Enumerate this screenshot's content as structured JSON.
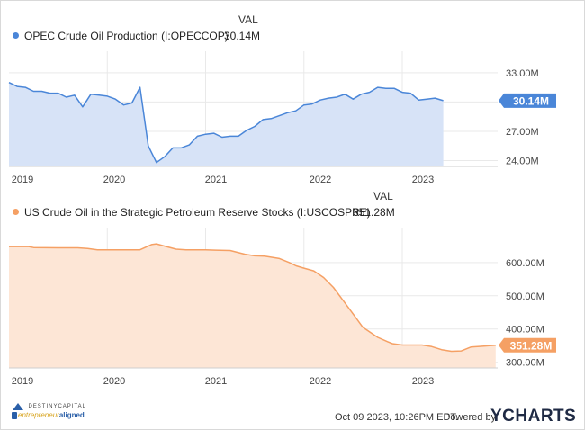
{
  "column_header": "VAL",
  "colors": {
    "opec": "#4a86d8",
    "opec_fill": "#d7e3f7",
    "spr": "#f5a064",
    "spr_fill": "#fde6d6",
    "grid": "#e9e9e9"
  },
  "chart_data": [
    {
      "type": "area",
      "legend": "OPEC Crude Oil Production (I:OPECCOP)",
      "last_value_label": "30.14M",
      "x_tick_labels": [
        "2019",
        "2020",
        "2021",
        "2022",
        "2023"
      ],
      "y_tick_labels": [
        "33.00M",
        "30.00M",
        "27.00M",
        "24.00M"
      ],
      "y_ticks": [
        33,
        30,
        27,
        24
      ],
      "ylim": [
        23.4,
        35.2
      ],
      "xlim": [
        2019.0,
        2023.97
      ],
      "series": [
        {
          "x": [
            2019.0,
            2019.083,
            2019.167,
            2019.25,
            2019.333,
            2019.417,
            2019.5,
            2019.583,
            2019.667,
            2019.75,
            2019.833,
            2019.917,
            2020.0,
            2020.083,
            2020.167,
            2020.25,
            2020.333,
            2020.417,
            2020.5,
            2020.583,
            2020.667,
            2020.75,
            2020.833,
            2020.917,
            2021.0,
            2021.083,
            2021.167,
            2021.25,
            2021.333,
            2021.417,
            2021.5,
            2021.583,
            2021.667,
            2021.75,
            2021.833,
            2021.917,
            2022.0,
            2022.083,
            2022.167,
            2022.25,
            2022.333,
            2022.417,
            2022.5,
            2022.583,
            2022.667,
            2022.75,
            2022.833,
            2022.917,
            2023.0,
            2023.083,
            2023.167,
            2023.25,
            2023.333,
            2023.417
          ],
          "y": [
            32.0,
            31.6,
            31.5,
            31.1,
            31.1,
            30.9,
            30.9,
            30.5,
            30.7,
            29.5,
            30.8,
            30.7,
            30.6,
            30.3,
            29.7,
            29.9,
            31.5,
            25.5,
            23.8,
            24.4,
            25.3,
            25.3,
            25.6,
            26.5,
            26.7,
            26.8,
            26.4,
            26.5,
            26.5,
            27.1,
            27.5,
            28.2,
            28.3,
            28.6,
            28.9,
            29.1,
            29.7,
            29.8,
            30.2,
            30.4,
            30.5,
            30.8,
            30.3,
            30.8,
            31.0,
            31.5,
            31.4,
            31.4,
            31.0,
            30.9,
            30.2,
            30.3,
            30.4,
            30.14
          ]
        }
      ]
    },
    {
      "type": "area",
      "legend": "US Crude Oil in the Strategic Petroleum Reserve Stocks (I:USCOSPRE)",
      "last_value_label": "351.28M",
      "x_tick_labels": [
        "2019",
        "2020",
        "2021",
        "2022",
        "2023"
      ],
      "y_tick_labels": [
        "600.00M",
        "500.00M",
        "400.00M",
        "300.00M"
      ],
      "y_ticks": [
        600,
        500,
        400,
        300
      ],
      "ylim": [
        283,
        705
      ],
      "xlim": [
        2019.0,
        2023.97
      ],
      "series": [
        {
          "x": [
            2019.0,
            2019.2,
            2019.25,
            2019.5,
            2019.7,
            2019.8,
            2019.9,
            2020.0,
            2020.2,
            2020.33,
            2020.45,
            2020.5,
            2020.6,
            2020.7,
            2020.8,
            2020.9,
            2021.0,
            2021.1,
            2021.25,
            2021.4,
            2021.5,
            2021.6,
            2021.75,
            2021.85,
            2021.92,
            2022.0,
            2022.1,
            2022.2,
            2022.3,
            2022.4,
            2022.5,
            2022.6,
            2022.7,
            2022.75,
            2022.85,
            2022.9,
            2023.0,
            2023.1,
            2023.2,
            2023.3,
            2023.4,
            2023.5,
            2023.6,
            2023.7,
            2023.8,
            2023.95
          ],
          "y": [
            648,
            648,
            645,
            644,
            644,
            642,
            638,
            638,
            638,
            638,
            654,
            656,
            648,
            640,
            638,
            638,
            638,
            637,
            636,
            625,
            620,
            619,
            612,
            600,
            590,
            583,
            575,
            555,
            525,
            485,
            445,
            405,
            385,
            375,
            362,
            356,
            352,
            352,
            352,
            347,
            338,
            333,
            334,
            346,
            348,
            351.28
          ]
        }
      ]
    }
  ],
  "footer": {
    "timestamp": "Oct 09 2023, 10:26PM EDT.",
    "powered_by": "Powered by",
    "brand": "YCHARTS",
    "logo1": "DESTINYCAPITAL",
    "logo2_a": "entrepreneur",
    "logo2_b": "aligned"
  }
}
